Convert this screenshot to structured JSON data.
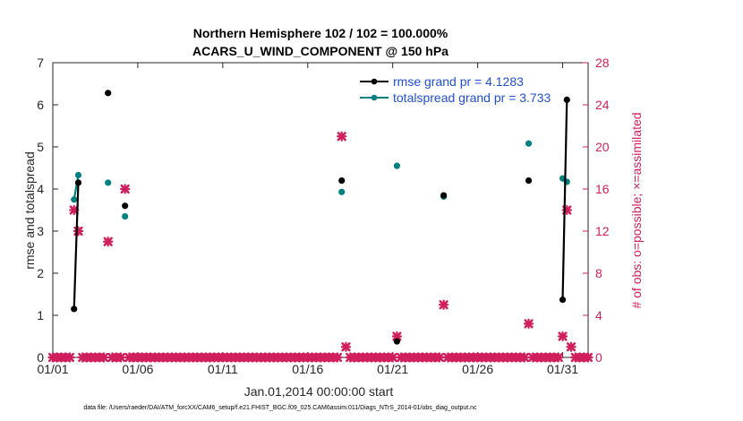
{
  "chart_data": {
    "type": "scatter",
    "title": "Northern Hemisphere 102 / 102 = 100.000%",
    "subtitle": "ACARS_U_WIND_COMPONENT @ 150 hPa",
    "xlabel": "Jan.01,2014 00:00:00 start",
    "ylabel": "rmse and totalspread",
    "ylabel_right": "# of obs: o=possible; ×=assimilated",
    "xlim": [
      1,
      32.5
    ],
    "ylim": [
      0,
      7
    ],
    "ylim_right": [
      0,
      28
    ],
    "x_tick_values": [
      1,
      6,
      11,
      16,
      21,
      26,
      31
    ],
    "x_tick_labels": [
      "01/01",
      "01/06",
      "01/11",
      "01/16",
      "01/21",
      "01/26",
      "01/31"
    ],
    "y_ticks": [
      "0",
      "1",
      "2",
      "3",
      "4",
      "5",
      "6",
      "7"
    ],
    "y_right_ticks": [
      "0",
      "4",
      "8",
      "12",
      "16",
      "20",
      "24",
      "28"
    ],
    "grid": false,
    "legend_position": "top-right",
    "legend": [
      {
        "label": "rmse grand pr = 4.1283",
        "color": "#000000"
      },
      {
        "label": "totalspread grand pr = 3.733",
        "color": "#008080"
      }
    ],
    "series": [
      {
        "name": "rmse grand pr = 4.1283",
        "color": "#000000",
        "points": [
          [
            2.25,
            1.15
          ],
          [
            2.5,
            4.15
          ],
          [
            4.25,
            6.28
          ],
          [
            5.25,
            3.6
          ],
          [
            18.0,
            4.2
          ],
          [
            21.25,
            0.38
          ],
          [
            24.0,
            3.85
          ],
          [
            29.0,
            4.2
          ],
          [
            31.0,
            1.37
          ],
          [
            31.25,
            6.12
          ]
        ],
        "connected_segments": [
          [
            [
              2.25,
              1.15
            ],
            [
              2.5,
              4.15
            ]
          ],
          [
            [
              31.0,
              1.37
            ],
            [
              31.25,
              6.12
            ]
          ]
        ]
      },
      {
        "name": "totalspread grand pr = 3.733",
        "color": "#008080",
        "points": [
          [
            2.25,
            3.75
          ],
          [
            2.5,
            4.33
          ],
          [
            4.25,
            4.15
          ],
          [
            5.25,
            3.35
          ],
          [
            18.0,
            3.93
          ],
          [
            21.25,
            4.55
          ],
          [
            24.0,
            3.82
          ],
          [
            29.0,
            5.08
          ],
          [
            31.0,
            4.25
          ],
          [
            31.25,
            4.17
          ]
        ],
        "connected_segments": [
          [
            [
              2.25,
              3.75
            ],
            [
              2.5,
              4.33
            ]
          ],
          [
            [
              31.0,
              4.25
            ],
            [
              31.25,
              4.17
            ]
          ]
        ]
      },
      {
        "name": "obs possible / assimilated",
        "axis": "right",
        "color": "#d01f5c",
        "marker": "x",
        "points": [
          [
            2.25,
            14
          ],
          [
            2.5,
            12
          ],
          [
            4.25,
            11
          ],
          [
            5.25,
            16
          ],
          [
            18.0,
            21
          ],
          [
            18.25,
            1
          ],
          [
            21.25,
            2
          ],
          [
            24.0,
            5
          ],
          [
            29.0,
            3.2
          ],
          [
            31.0,
            2
          ],
          [
            31.25,
            14
          ],
          [
            31.5,
            1
          ]
        ],
        "zero_from": 1,
        "zero_to": 32.5,
        "zero_step": 0.25
      }
    ]
  },
  "footer": "data file: /Users/raeder/DAI/ATM_forcXX/CAM6_setup/f.e21.FHIST_BGC.f09_025.CAM6assim.011/Diags_NTrS_2014-01/obs_diag_output.nc"
}
